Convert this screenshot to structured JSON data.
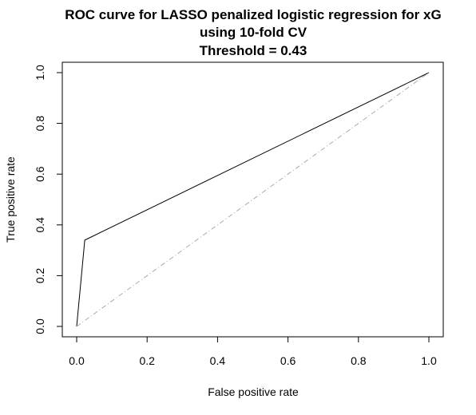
{
  "chart_data": {
    "type": "line",
    "title_lines": [
      "ROC curve for LASSO penalized logistic regression for xG",
      "using 10-fold CV",
      "Threshold = 0.43"
    ],
    "xlabel": "False positive rate",
    "ylabel": "True positive rate",
    "xlim": [
      0,
      1
    ],
    "ylim": [
      0,
      1
    ],
    "x_ticks": [
      "0.0",
      "0.2",
      "0.4",
      "0.6",
      "0.8",
      "1.0"
    ],
    "y_ticks": [
      "0.0",
      "0.2",
      "0.4",
      "0.6",
      "0.8",
      "1.0"
    ],
    "grid": false,
    "legend": "none",
    "series": [
      {
        "style": "solid",
        "color": "#000000",
        "x": [
          0,
          0.023,
          1
        ],
        "y": [
          0,
          0.34,
          1
        ]
      },
      {
        "style": "dash-dot",
        "color": "#aaaaaa",
        "x": [
          0,
          1
        ],
        "y": [
          0,
          1
        ]
      }
    ]
  }
}
